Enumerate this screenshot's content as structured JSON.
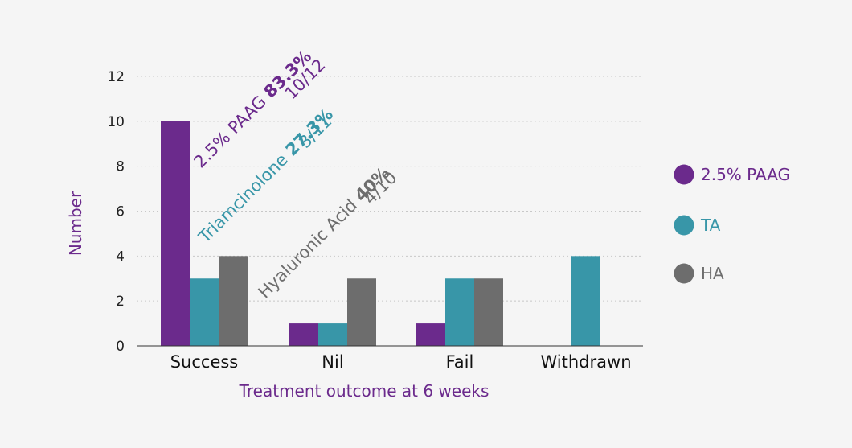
{
  "chart_data": {
    "type": "bar",
    "title": "",
    "xlabel": "Treatment outcome at 6 weeks",
    "ylabel": "Number",
    "ylim": [
      0,
      12
    ],
    "yticks": [
      0,
      2,
      4,
      6,
      8,
      10,
      12
    ],
    "grid": true,
    "legend_position": "right",
    "categories": [
      "Success",
      "Nil",
      "Fail",
      "Withdrawn"
    ],
    "series": [
      {
        "name": "2.5% PAAG",
        "color": "#6b2a8c",
        "values": [
          10,
          1,
          1,
          0
        ]
      },
      {
        "name": "TA",
        "color": "#3896a8",
        "values": [
          3,
          1,
          3,
          4
        ]
      },
      {
        "name": "HA",
        "color": "#6d6d6d",
        "values": [
          4,
          3,
          3,
          0
        ]
      }
    ],
    "annotations": [
      {
        "name": "2.5% PAAG",
        "percent": "83.3%",
        "fraction": "10/12",
        "color": "#6b2a8c"
      },
      {
        "name": "Triamcinolone",
        "percent": "27.3%",
        "fraction": "3/11",
        "color": "#3896a8"
      },
      {
        "name": "Hyaluronic Acid",
        "percent": "40%",
        "fraction": "4/10",
        "color": "#6d6d6d"
      }
    ],
    "colors": {
      "axis_title": "#6b2a8c",
      "grid": "#c8c8c8",
      "axis": "#333333"
    }
  }
}
